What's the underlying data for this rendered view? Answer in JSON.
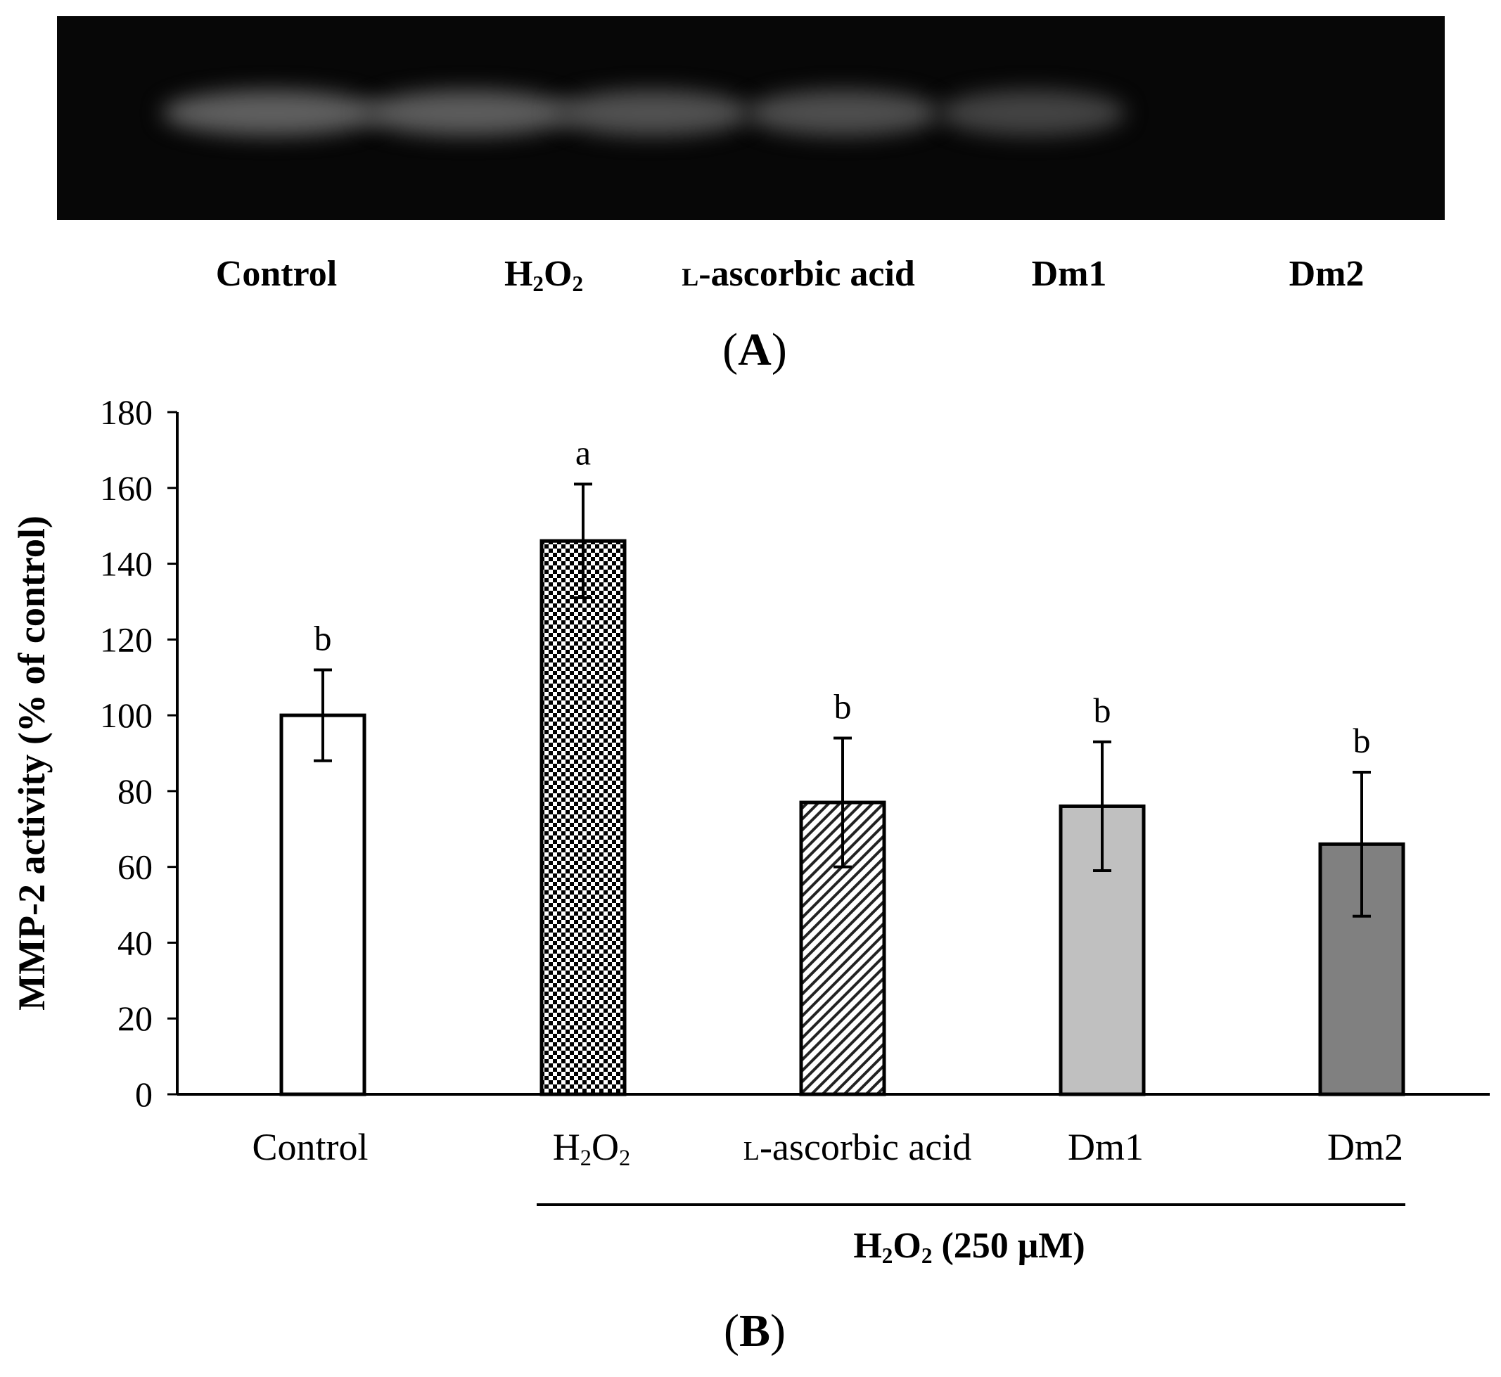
{
  "gel": {
    "lanes": [
      {
        "label_main": "Control",
        "label_sc": "",
        "intensity": 1.0
      },
      {
        "label_main": "H",
        "label_sc": "",
        "sub1": "2",
        "mid": "O",
        "sub2": "2",
        "intensity": 0.97
      },
      {
        "label_sc": "l",
        "label_main": "-ascorbic acid",
        "intensity": 0.85
      },
      {
        "label_main": "Dm1",
        "label_sc": "",
        "intensity": 0.82
      },
      {
        "label_main": "Dm2",
        "label_sc": "",
        "intensity": 0.7
      }
    ]
  },
  "panel_a_label": "A",
  "panel_b_label": "B",
  "bracket_label": {
    "h": "H",
    "sub1": "2",
    "o": "O",
    "sub2": "2",
    "rest": " (250 μM)"
  },
  "chart_data": {
    "type": "bar",
    "categories": [
      "Control",
      "H2O2",
      "L-ascorbic acid",
      "Dm1",
      "Dm2"
    ],
    "values": [
      100,
      146,
      77,
      76,
      66
    ],
    "errors": [
      12,
      15,
      17,
      17,
      19
    ],
    "significance": [
      "b",
      "a",
      "b",
      "b",
      "b"
    ],
    "fills": [
      "#ffffff",
      "checker",
      "hatch",
      "#c0c0c0",
      "#808080"
    ],
    "ylabel": "MMP-2 activity (% of control)",
    "xlabel": "",
    "ylim": [
      0,
      180
    ],
    "yticks": [
      0,
      20,
      40,
      60,
      80,
      100,
      120,
      140,
      160,
      180
    ],
    "grid": false
  }
}
